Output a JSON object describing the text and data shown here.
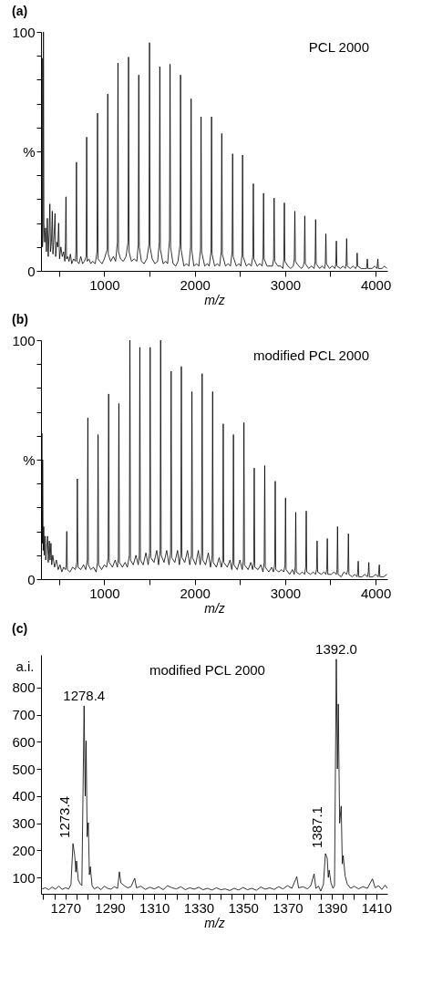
{
  "chart_data": [
    {
      "type": "line",
      "title": "(a)",
      "xlabel": "m/z",
      "xlim": [
        300,
        4130
      ],
      "ylim": [
        0,
        100
      ],
      "xticks": [
        {
          "value": 500,
          "label": null
        },
        1000,
        {
          "value": 1500,
          "label": null
        },
        2000,
        {
          "value": 2500,
          "label": null
        },
        3000,
        {
          "value": 3500,
          "label": null
        },
        4000
      ],
      "yticks": [
        0,
        {
          "value": 10,
          "label": null
        },
        {
          "value": 20,
          "label": null
        },
        {
          "value": 30,
          "label": null
        },
        {
          "value": 40,
          "label": null
        },
        {
          "value": 50,
          "label": "%"
        },
        {
          "value": 60,
          "label": null
        },
        {
          "value": 70,
          "label": null
        },
        {
          "value": 80,
          "label": null
        },
        {
          "value": 90,
          "label": null
        },
        100
      ],
      "annotations": [
        "PCL 2000"
      ],
      "series": [
        {
          "color": "#000000",
          "x": [
            300,
            305,
            312,
            316,
            322,
            327,
            332,
            340,
            350,
            360,
            370,
            380,
            390,
            398,
            405,
            415,
            425,
            432,
            445,
            455,
            462,
            475,
            485,
            495,
            505,
            520,
            535,
            550,
            563,
            570,
            576,
            582,
            595,
            610,
            625,
            640,
            660,
            680,
            686,
            692,
            698,
            720,
            740,
            760,
            780,
            799,
            805,
            811,
            830,
            850,
            870,
            900,
            919,
            925,
            931,
            950,
            975,
            1000,
            1032,
            1038,
            1044,
            1070,
            1100,
            1125,
            1145,
            1151,
            1157,
            1180,
            1210,
            1240,
            1262,
            1268,
            1274,
            1300,
            1330,
            1360,
            1375,
            1381,
            1387,
            1410,
            1440,
            1470,
            1494,
            1500,
            1506,
            1530,
            1560,
            1590,
            1608,
            1614,
            1620,
            1650,
            1680,
            1700,
            1721,
            1727,
            1733,
            1760,
            1790,
            1815,
            1837,
            1843,
            1849,
            1880,
            1910,
            1935,
            1954,
            1960,
            1966,
            1990,
            2020,
            2045,
            2064,
            2070,
            2076,
            2110,
            2140,
            2160,
            2180,
            2186,
            2192,
            2220,
            2250,
            2275,
            2293,
            2299,
            2305,
            2340,
            2370,
            2395,
            2413,
            2419,
            2425,
            2460,
            2490,
            2510,
            2523,
            2529,
            2535,
            2570,
            2600,
            2625,
            2642,
            2648,
            2654,
            2690,
            2720,
            2745,
            2755,
            2761,
            2767,
            2800,
            2830,
            2860,
            2872,
            2878,
            2884,
            2920,
            2950,
            2975,
            2985,
            2991,
            2997,
            3030,
            3060,
            3090,
            3101,
            3107,
            3113,
            3150,
            3180,
            3200,
            3211,
            3217,
            3223,
            3260,
            3290,
            3320,
            3331,
            3337,
            3343,
            3380,
            3410,
            3435,
            3444,
            3450,
            3456,
            3490,
            3520,
            3550,
            3560,
            3566,
            3572,
            3610,
            3640,
            3665,
            3674,
            3680,
            3686,
            3720,
            3750,
            3780,
            3790,
            3796,
            3802,
            3840,
            3870,
            3900,
            3909,
            3915,
            3960,
            3990,
            4015,
            4025,
            4031,
            4070,
            4100,
            4125
          ],
          "values": [
            30,
            8,
            89,
            10,
            15,
            100,
            20,
            12,
            18,
            8,
            22,
            6,
            16,
            28,
            8,
            12,
            25,
            7,
            15,
            24,
            6,
            12,
            10,
            20,
            5,
            10,
            6,
            8,
            4,
            12,
            31,
            5,
            6,
            4,
            7,
            3,
            5,
            4,
            8,
            45.5,
            4,
            3,
            6,
            3,
            4,
            6,
            56,
            4,
            5,
            3,
            4,
            3,
            8,
            66,
            5,
            4,
            3,
            5,
            9,
            74,
            7,
            4,
            6,
            4,
            12,
            87,
            8,
            5,
            4,
            6,
            12,
            89.5,
            8,
            4,
            5,
            4,
            11,
            82,
            10,
            4,
            3,
            5,
            11,
            95.5,
            10,
            5,
            3,
            4,
            12,
            85.5,
            9,
            3,
            4,
            3,
            13,
            86.5,
            10,
            3,
            2,
            4,
            11,
            82,
            9,
            2,
            3,
            2,
            10,
            72,
            9,
            2,
            3,
            2,
            9,
            64.5,
            8,
            2,
            3,
            2,
            8,
            64.5,
            7,
            2,
            3,
            2,
            8,
            57.5,
            7,
            2,
            3,
            2,
            8,
            49,
            6,
            2,
            3,
            2,
            7,
            48.5,
            6,
            2,
            3,
            2,
            6,
            36.5,
            5,
            2,
            3,
            2,
            6,
            32.5,
            5,
            2,
            2,
            2,
            5,
            30.5,
            4,
            2,
            2,
            1,
            5,
            28.5,
            4,
            2,
            1,
            2,
            5,
            25,
            4,
            2,
            1,
            2,
            4,
            23,
            3,
            1,
            2,
            1,
            4,
            21.5,
            3,
            1,
            2,
            1,
            3,
            15.5,
            3,
            1,
            2,
            1,
            3,
            12.5,
            2,
            1,
            2,
            1,
            3,
            13.5,
            2,
            1,
            2,
            1,
            2,
            7.5,
            2,
            1,
            1,
            1,
            5,
            1,
            1,
            2,
            1,
            5,
            1,
            1,
            2,
            1
          ]
        }
      ]
    },
    {
      "type": "line",
      "title": "(b)",
      "xlabel": "m/z",
      "xlim": [
        300,
        4130
      ],
      "ylim": [
        0,
        100
      ],
      "xticks": [
        {
          "value": 500,
          "label": null
        },
        1000,
        {
          "value": 1500,
          "label": null
        },
        2000,
        {
          "value": 2500,
          "label": null
        },
        3000,
        {
          "value": 3500,
          "label": null
        },
        4000
      ],
      "yticks": [
        0,
        {
          "value": 10,
          "label": null
        },
        {
          "value": 20,
          "label": null
        },
        {
          "value": 30,
          "label": null
        },
        {
          "value": 40,
          "label": null
        },
        {
          "value": 50,
          "label": "%"
        },
        {
          "value": 60,
          "label": null
        },
        {
          "value": 70,
          "label": null
        },
        {
          "value": 80,
          "label": null
        },
        {
          "value": 90,
          "label": null
        },
        100
      ],
      "annotations": [
        "modified PCL 2000"
      ],
      "series": [
        {
          "color": "#000000",
          "x": [
            300,
            305,
            310,
            314,
            318,
            324,
            330,
            336,
            345,
            352,
            360,
            372,
            380,
            392,
            400,
            410,
            418,
            430,
            450,
            470,
            490,
            510,
            530,
            550,
            570,
            579,
            585,
            591,
            620,
            650,
            680,
            696,
            702,
            708,
            740,
            770,
            795,
            812,
            818,
            824,
            850,
            880,
            910,
            925,
            931,
            937,
            970,
            1000,
            1025,
            1042,
            1048,
            1054,
            1090,
            1120,
            1145,
            1155,
            1161,
            1167,
            1200,
            1230,
            1255,
            1277,
            1283,
            1289,
            1320,
            1350,
            1375,
            1387,
            1393,
            1399,
            1430,
            1460,
            1485,
            1501,
            1507,
            1513,
            1550,
            1580,
            1600,
            1617,
            1623,
            1629,
            1660,
            1690,
            1715,
            1733,
            1739,
            1745,
            1780,
            1810,
            1830,
            1846,
            1852,
            1858,
            1890,
            1920,
            1945,
            1963,
            1969,
            1975,
            2010,
            2040,
            2060,
            2076,
            2082,
            2088,
            2120,
            2150,
            2175,
            2192,
            2198,
            2204,
            2240,
            2270,
            2295,
            2309,
            2315,
            2321,
            2360,
            2390,
            2410,
            2422,
            2428,
            2434,
            2470,
            2500,
            2525,
            2538,
            2544,
            2550,
            2590,
            2620,
            2640,
            2652,
            2658,
            2664,
            2700,
            2730,
            2755,
            2768,
            2774,
            2780,
            2820,
            2850,
            2870,
            2884,
            2890,
            2896,
            2930,
            2960,
            2985,
            2998,
            3004,
            3010,
            3050,
            3080,
            3100,
            3111,
            3117,
            3123,
            3160,
            3190,
            3215,
            3227,
            3233,
            3239,
            3280,
            3310,
            3335,
            3347,
            3353,
            3359,
            3400,
            3430,
            3450,
            3460,
            3466,
            3472,
            3510,
            3540,
            3565,
            3573,
            3579,
            3585,
            3620,
            3650,
            3680,
            3693,
            3699,
            3705,
            3740,
            3770,
            3795,
            3802,
            3808,
            3814,
            3850,
            3880,
            3910,
            3919,
            3925,
            3931,
            3970,
            4000,
            4030,
            4041,
            4047,
            4090,
            4125
          ],
          "values": [
            70,
            20,
            61,
            15,
            50,
            12,
            22,
            10,
            18,
            8,
            12,
            18,
            7,
            16,
            8,
            15,
            6,
            10,
            5,
            8,
            4,
            6,
            3,
            5,
            4,
            6,
            20,
            4,
            3,
            5,
            4,
            7,
            42,
            5,
            4,
            6,
            4,
            8,
            67.5,
            6,
            4,
            5,
            3,
            7,
            60.5,
            6,
            4,
            6,
            5,
            9,
            77.5,
            7,
            5,
            8,
            5,
            9,
            73.5,
            7,
            5,
            7,
            5,
            10,
            100,
            8,
            6,
            10,
            6,
            10,
            97,
            8,
            6,
            11,
            6,
            11,
            97,
            9,
            7,
            12,
            6,
            12,
            100,
            10,
            7,
            12,
            6,
            11,
            87,
            9,
            7,
            12,
            6,
            11,
            89,
            9,
            7,
            12,
            6,
            10,
            78.5,
            9,
            6,
            12,
            6,
            11,
            86,
            8,
            6,
            11,
            5,
            10,
            78.5,
            7,
            5,
            9,
            5,
            8,
            65,
            7,
            5,
            8,
            4,
            8,
            60.5,
            6,
            4,
            8,
            4,
            8,
            65.5,
            6,
            4,
            7,
            4,
            7,
            46.5,
            5,
            4,
            6,
            3,
            7,
            47.5,
            5,
            3,
            5,
            3,
            6,
            41,
            4,
            3,
            4,
            3,
            6,
            34,
            4,
            2,
            4,
            2,
            5,
            28,
            3,
            2,
            3,
            2,
            5,
            28.5,
            3,
            2,
            3,
            2,
            4,
            16,
            3,
            2,
            3,
            2,
            4,
            17,
            2,
            2,
            3,
            2,
            4,
            22,
            2,
            1,
            3,
            2,
            4,
            19,
            2,
            1,
            2,
            1,
            3,
            7.5,
            1,
            1,
            2,
            1,
            3,
            7,
            1,
            1,
            2,
            1,
            6,
            1,
            1,
            2
          ]
        }
      ]
    },
    {
      "type": "line",
      "title": "(c)",
      "xlabel": "m/z",
      "ylabel": "a.i.",
      "xlim": [
        1259,
        1415
      ],
      "ylim": [
        40,
        920
      ],
      "xticks": [
        {
          "value": 1260,
          "label": null
        },
        {
          "value": 1265,
          "label": null
        },
        1270,
        {
          "value": 1275,
          "label": null
        },
        {
          "value": 1280,
          "label": null
        },
        {
          "value": 1285,
          "label": null
        },
        1290,
        {
          "value": 1295,
          "label": null
        },
        {
          "value": 1300,
          "label": null
        },
        {
          "value": 1305,
          "label": null
        },
        1310,
        {
          "value": 1315,
          "label": null
        },
        {
          "value": 1320,
          "label": null
        },
        {
          "value": 1325,
          "label": null
        },
        1330,
        {
          "value": 1335,
          "label": null
        },
        {
          "value": 1340,
          "label": null
        },
        {
          "value": 1345,
          "label": null
        },
        1350,
        {
          "value": 1355,
          "label": null
        },
        {
          "value": 1360,
          "label": null
        },
        {
          "value": 1365,
          "label": null
        },
        1370,
        {
          "value": 1375,
          "label": null
        },
        {
          "value": 1380,
          "label": null
        },
        {
          "value": 1385,
          "label": null
        },
        1390,
        {
          "value": 1395,
          "label": null
        },
        {
          "value": 1400,
          "label": null
        },
        {
          "value": 1405,
          "label": null
        },
        1410
      ],
      "yticks": [
        100,
        200,
        300,
        400,
        500,
        600,
        700,
        800
      ],
      "annotations": [
        "modified PCL 2000",
        {
          "text": "1273.4",
          "x": 1273.4,
          "y": 225
        },
        {
          "text": "1278.4",
          "x": 1278.4,
          "y": 732
        },
        {
          "text": "1387.1",
          "x": 1387.1,
          "y": 188
        },
        {
          "text": "1392.0",
          "x": 1392.0,
          "y": 904
        }
      ],
      "series": [
        {
          "color": "#000000",
          "x": [
            1259.5,
            1261,
            1262.5,
            1264,
            1265.5,
            1267,
            1268.5,
            1270,
            1271.5,
            1272.5,
            1273.4,
            1274.2,
            1274.7,
            1275,
            1275.8,
            1276.8,
            1277.4,
            1278.4,
            1278.9,
            1279.3,
            1279.8,
            1280.3,
            1280.8,
            1281.2,
            1282,
            1283,
            1284.5,
            1286,
            1287.5,
            1289,
            1290.5,
            1292,
            1293.5,
            1294.3,
            1295,
            1296.5,
            1298,
            1299.5,
            1301.2,
            1302,
            1304,
            1306,
            1308,
            1310,
            1312,
            1314,
            1316,
            1318,
            1320,
            1322,
            1324,
            1326,
            1328,
            1330,
            1332,
            1334,
            1336,
            1338,
            1340,
            1342,
            1344,
            1346,
            1348,
            1350,
            1352,
            1354,
            1356,
            1358,
            1360,
            1362,
            1364,
            1366,
            1368,
            1370,
            1372,
            1374.2,
            1375,
            1377,
            1379,
            1380.5,
            1382,
            1382.8,
            1384,
            1385,
            1386.2,
            1387.1,
            1387.9,
            1388.4,
            1388.8,
            1389.6,
            1390.5,
            1391.2,
            1392,
            1392.5,
            1392.9,
            1393.5,
            1394.2,
            1394.7,
            1395.1,
            1396,
            1397,
            1398.5,
            1400,
            1402,
            1404,
            1406,
            1408.3,
            1409.5,
            1411,
            1412.5,
            1414,
            1415
          ],
          "values": [
            58,
            62,
            55,
            65,
            57,
            68,
            56,
            62,
            58,
            75,
            225,
            180,
            120,
            161,
            90,
            75,
            70,
            732,
            400,
            603,
            250,
            302,
            110,
            140,
            70,
            58,
            65,
            55,
            68,
            60,
            57,
            66,
            60,
            121,
            80,
            70,
            62,
            66,
            97,
            62,
            68,
            56,
            64,
            58,
            66,
            55,
            70,
            62,
            58,
            66,
            55,
            62,
            57,
            64,
            55,
            60,
            54,
            62,
            55,
            58,
            52,
            60,
            54,
            63,
            55,
            60,
            53,
            65,
            57,
            62,
            56,
            66,
            58,
            70,
            60,
            103,
            62,
            66,
            58,
            70,
            113,
            60,
            68,
            50,
            75,
            188,
            171,
            100,
            127,
            80,
            60,
            70,
            904,
            500,
            739,
            300,
            363,
            150,
            181,
            105,
            75,
            60,
            68,
            58,
            66,
            60,
            95,
            62,
            70,
            56,
            72,
            60
          ]
        }
      ]
    }
  ]
}
